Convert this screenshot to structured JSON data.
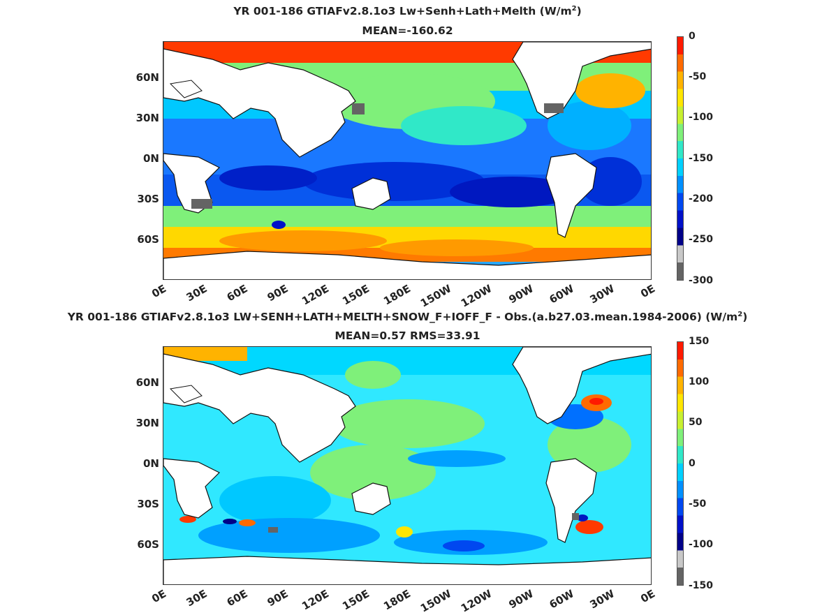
{
  "panels": [
    {
      "title_prefix": "YR 001-186 GTIAFv2.8.1o3 Lw+Senh+Lath+Melth (W/m",
      "title_sup": "2",
      "title_suffix": ")",
      "stats": "MEAN=-160.62",
      "lat_labels": [
        "60N",
        "30N",
        "0N",
        "30S",
        "60S"
      ],
      "lon_labels": [
        "0E",
        "30E",
        "60E",
        "90E",
        "120E",
        "150E",
        "180E",
        "150W",
        "120W",
        "90W",
        "60W",
        "30W",
        "0E"
      ],
      "colorbar_labels": [
        "0",
        "-50",
        "-100",
        "-150",
        "-200",
        "-250",
        "-300"
      ],
      "colorbar_colors": [
        "#ff1a00",
        "#ff6a00",
        "#ffb300",
        "#ffe600",
        "#c8f030",
        "#7ff07a",
        "#30e8c8",
        "#00d0ff",
        "#0090ff",
        "#0048f0",
        "#0010c8",
        "#000088",
        "#c8c8c8",
        "#646464"
      ]
    },
    {
      "title_prefix": "YR 001-186 GTIAFv2.8.1o3 LW+SENH+LATH+MELTH+SNOW_F+IOFF_F - Obs.(a.b27.03.mean.1984-2006) (W/m",
      "title_sup": "2",
      "title_suffix": ")",
      "stats": "MEAN=0.57 RMS=33.91",
      "lat_labels": [
        "60N",
        "30N",
        "0N",
        "30S",
        "60S"
      ],
      "lon_labels": [
        "0E",
        "30E",
        "60E",
        "90E",
        "120E",
        "150E",
        "180E",
        "150W",
        "120W",
        "90W",
        "60W",
        "30W",
        "0E"
      ],
      "colorbar_labels": [
        "150",
        "100",
        "50",
        "0",
        "-50",
        "-100",
        "-150"
      ],
      "colorbar_colors": [
        "#ff1a00",
        "#ff6a00",
        "#ffb300",
        "#ffe600",
        "#c8f030",
        "#7ff07a",
        "#30e8c8",
        "#00d0ff",
        "#0090ff",
        "#0048f0",
        "#0010c8",
        "#000088",
        "#c8c8c8",
        "#646464"
      ]
    }
  ]
}
